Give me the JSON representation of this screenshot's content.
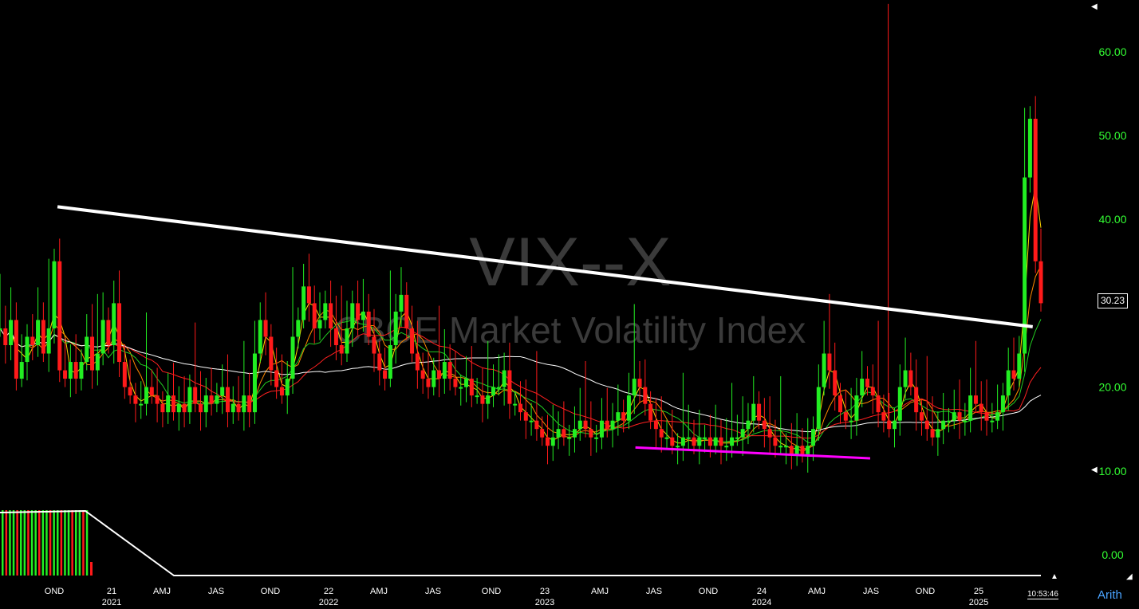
{
  "symbol": "VIX--X",
  "name": "CBOE Market Volatility Index",
  "last_price": "30.23",
  "clock": "10:53:46",
  "scale_mode": "Arith",
  "colors": {
    "up": "#22ee22",
    "down": "#ff1a1a",
    "trendline": "#ffffff",
    "support": "#ff00ff",
    "axis": "#33ff33"
  },
  "chart_data": {
    "type": "candlestick",
    "y_axis": {
      "ticks": [
        "60.00",
        "50.00",
        "40.00",
        "30.00",
        "20.00",
        "10.00",
        "0.00"
      ],
      "values": [
        60,
        50,
        40,
        30,
        20,
        10,
        0
      ],
      "ylim": [
        0,
        66
      ]
    },
    "x_axis": {
      "quarter_labels": [
        "OND",
        "AMJ",
        "JAS",
        "OND",
        "AMJ",
        "JAS",
        "OND",
        "AMJ",
        "JAS",
        "OND",
        "AMJ",
        "JAS",
        "OND"
      ],
      "year_labels": [
        {
          "label": "21",
          "year": "2021"
        },
        {
          "label": "22",
          "year": "2022"
        },
        {
          "label": "23",
          "year": "2023"
        },
        {
          "label": "24",
          "year": "2024"
        },
        {
          "label": "25",
          "year": "2025"
        }
      ]
    },
    "candles_weekly_close": [
      27,
      25,
      28,
      21,
      23,
      26,
      25,
      28,
      24,
      27,
      35,
      22,
      21,
      23,
      21,
      23,
      26,
      22,
      24,
      28,
      25,
      30,
      23,
      20,
      19,
      18,
      18,
      20,
      19,
      18,
      17,
      19,
      17,
      18,
      17,
      20,
      18,
      17,
      19,
      18,
      19,
      20,
      17,
      18,
      17,
      19,
      17,
      24,
      28,
      26,
      22,
      20,
      19,
      21,
      26,
      28,
      32,
      30,
      27,
      28,
      30,
      27,
      25,
      24,
      27,
      30,
      28,
      29,
      26,
      24,
      22,
      21,
      25,
      29,
      31,
      27,
      24,
      22,
      21,
      20,
      22,
      21,
      23,
      21,
      20,
      20,
      21,
      19,
      19,
      18,
      19,
      20,
      20,
      22,
      18,
      18,
      17,
      16,
      16,
      15,
      14,
      13,
      14,
      15,
      14,
      14,
      15,
      16,
      15,
      14,
      14,
      16,
      15,
      16,
      17,
      16,
      19,
      21,
      20,
      18,
      16,
      15,
      14,
      14,
      13,
      13,
      14,
      14,
      13,
      14,
      14,
      13,
      14,
      13,
      13,
      14,
      14,
      15,
      16,
      18,
      16,
      15,
      14,
      13,
      13,
      13,
      12,
      13,
      12,
      13,
      15,
      20,
      24,
      22,
      19,
      17,
      16,
      16,
      19,
      21,
      20,
      19,
      17,
      16,
      15,
      16,
      20,
      22,
      20,
      17,
      16,
      15,
      14,
      15,
      16,
      16,
      17,
      16,
      16,
      19,
      18,
      17,
      16,
      16,
      17,
      19,
      22,
      21,
      24,
      45,
      52,
      35,
      30
    ],
    "trendline": {
      "start": {
        "date": "2020-10",
        "value": 41.5
      },
      "end": {
        "date": "2025-04",
        "value": 27.2
      }
    },
    "support_line": {
      "start": {
        "date": "2023-06",
        "value": 12.8
      },
      "end": {
        "date": "2024-07",
        "value": 11.5
      }
    },
    "spike": {
      "date": "2024-08",
      "high": 65.7
    },
    "last": 30.23
  }
}
